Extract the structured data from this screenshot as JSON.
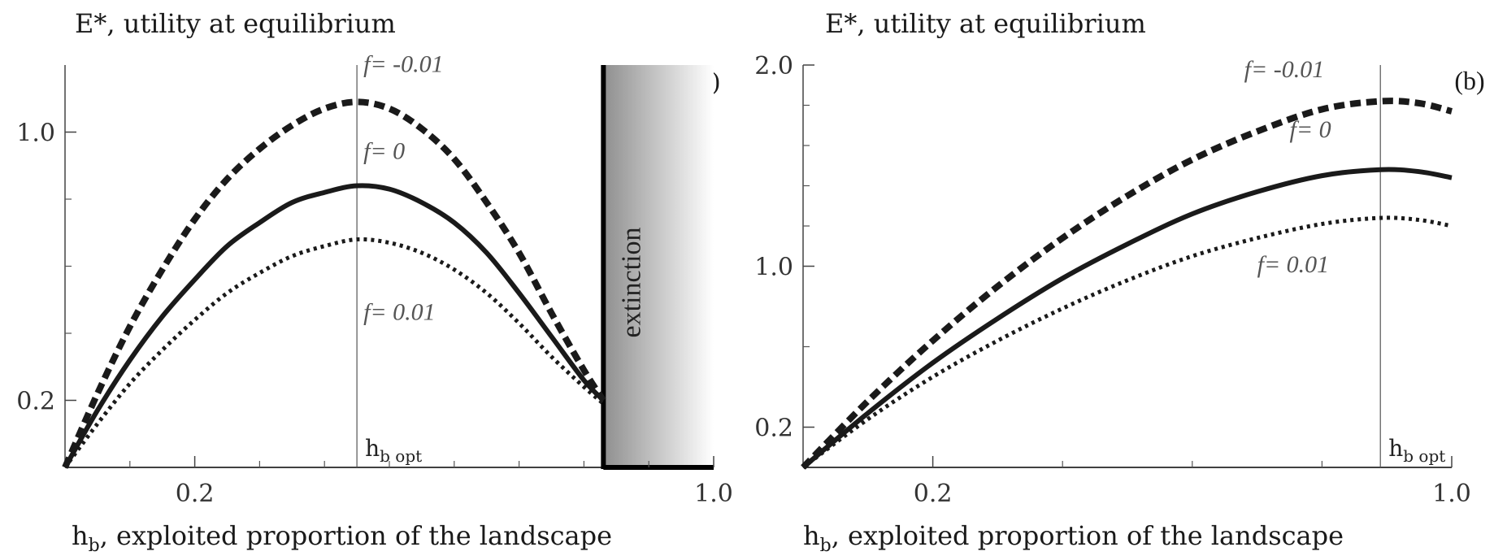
{
  "chart_data": [
    {
      "panel": "(a)",
      "type": "line",
      "title": "E*, utility at equilibrium",
      "xlabel": "h",
      "xlabel_sub": "b",
      "xlabel_rest": ", exploited proportion of the landscape",
      "xlim": [
        0,
        1.0
      ],
      "ylim": [
        0,
        1.2
      ],
      "x_tick_labels": [
        {
          "value": 0.2,
          "label": "0.2"
        },
        {
          "value": 1.0,
          "label": "1.0"
        }
      ],
      "x_minor_ticks": [
        0.1,
        0.3,
        0.4,
        0.5,
        0.6,
        0.7,
        0.8,
        0.9
      ],
      "y_tick_labels": [
        {
          "value": 0.2,
          "label": "0.2"
        },
        {
          "value": 1.0,
          "label": "1.0"
        }
      ],
      "y_minor_ticks": [
        0.4,
        0.6,
        0.8
      ],
      "vline": {
        "x": 0.45,
        "label_main": "h",
        "label_sub": "b opt"
      },
      "extinction": {
        "x_start": 0.83,
        "label": "extinction"
      },
      "series": [
        {
          "name": "f = -0.01",
          "style": "dashed",
          "x": [
            0.0,
            0.05,
            0.1,
            0.15,
            0.2,
            0.25,
            0.3,
            0.35,
            0.4,
            0.45,
            0.5,
            0.55,
            0.6,
            0.65,
            0.7,
            0.75,
            0.8,
            0.83
          ],
          "y": [
            0.0,
            0.22,
            0.42,
            0.59,
            0.74,
            0.86,
            0.95,
            1.02,
            1.07,
            1.09,
            1.07,
            1.01,
            0.92,
            0.79,
            0.64,
            0.46,
            0.29,
            0.2
          ]
        },
        {
          "name": "f = 0",
          "style": "solid",
          "x": [
            0.0,
            0.05,
            0.1,
            0.15,
            0.2,
            0.25,
            0.3,
            0.35,
            0.4,
            0.45,
            0.5,
            0.55,
            0.6,
            0.65,
            0.7,
            0.75,
            0.8,
            0.83
          ],
          "y": [
            0.0,
            0.17,
            0.32,
            0.45,
            0.56,
            0.66,
            0.73,
            0.79,
            0.82,
            0.84,
            0.83,
            0.79,
            0.73,
            0.64,
            0.52,
            0.39,
            0.26,
            0.2
          ]
        },
        {
          "name": "f = 0.01",
          "style": "dotted",
          "x": [
            0.0,
            0.05,
            0.1,
            0.15,
            0.2,
            0.25,
            0.3,
            0.35,
            0.4,
            0.45,
            0.5,
            0.55,
            0.6,
            0.65,
            0.7,
            0.75,
            0.8,
            0.83
          ],
          "y": [
            0.0,
            0.13,
            0.25,
            0.35,
            0.44,
            0.52,
            0.58,
            0.63,
            0.66,
            0.68,
            0.67,
            0.64,
            0.59,
            0.52,
            0.43,
            0.33,
            0.24,
            0.19
          ]
        }
      ],
      "series_labels": [
        {
          "x": 0.46,
          "y": 1.18,
          "prefix": "f",
          "value": "= -0.01"
        },
        {
          "x": 0.46,
          "y": 0.92,
          "prefix": "f",
          "value": "= 0"
        },
        {
          "x": 0.46,
          "y": 0.44,
          "prefix": "f",
          "value": "= 0.01"
        }
      ]
    },
    {
      "panel": "(b)",
      "type": "line",
      "title": "E*, utility at equilibrium",
      "xlabel": "h",
      "xlabel_sub": "b",
      "xlabel_rest": ", exploited proportion of the landscape",
      "xlim": [
        0,
        1.0
      ],
      "ylim": [
        0,
        2.0
      ],
      "x_tick_labels": [
        {
          "value": 0.2,
          "label": "0.2"
        },
        {
          "value": 1.0,
          "label": "1.0"
        }
      ],
      "x_minor_ticks": [
        0.4,
        0.6,
        0.8
      ],
      "y_tick_labels": [
        {
          "value": 0.2,
          "label": "0.2"
        },
        {
          "value": 1.0,
          "label": "1.0"
        },
        {
          "value": 2.0,
          "label": "2.0"
        }
      ],
      "y_minor_ticks": [
        0.6,
        1.2,
        1.4,
        1.6,
        1.8
      ],
      "vline": {
        "x": 0.89,
        "label_main": "h",
        "label_sub": "b opt"
      },
      "series": [
        {
          "name": "f = -0.01",
          "style": "dashed",
          "x": [
            0.0,
            0.1,
            0.2,
            0.3,
            0.4,
            0.5,
            0.6,
            0.7,
            0.8,
            0.89,
            0.95,
            1.0
          ],
          "y": [
            0.0,
            0.33,
            0.63,
            0.9,
            1.14,
            1.35,
            1.53,
            1.67,
            1.78,
            1.82,
            1.81,
            1.77
          ]
        },
        {
          "name": "f = 0",
          "style": "solid",
          "x": [
            0.0,
            0.1,
            0.2,
            0.3,
            0.4,
            0.5,
            0.6,
            0.7,
            0.8,
            0.89,
            0.95,
            1.0
          ],
          "y": [
            0.0,
            0.27,
            0.52,
            0.74,
            0.94,
            1.11,
            1.26,
            1.37,
            1.45,
            1.48,
            1.47,
            1.44
          ]
        },
        {
          "name": "f = 0.01",
          "style": "dotted",
          "x": [
            0.0,
            0.1,
            0.2,
            0.3,
            0.4,
            0.5,
            0.6,
            0.7,
            0.8,
            0.89,
            0.95,
            1.0
          ],
          "y": [
            0.0,
            0.24,
            0.45,
            0.63,
            0.79,
            0.93,
            1.05,
            1.14,
            1.21,
            1.24,
            1.23,
            1.2
          ]
        }
      ],
      "series_labels": [
        {
          "x": 0.68,
          "y": 1.94,
          "prefix": "f",
          "value": "= -0.01"
        },
        {
          "x": 0.75,
          "y": 1.64,
          "prefix": "f",
          "value": "= 0"
        },
        {
          "x": 0.7,
          "y": 0.97,
          "prefix": "f",
          "value": "= 0.01"
        }
      ]
    }
  ]
}
